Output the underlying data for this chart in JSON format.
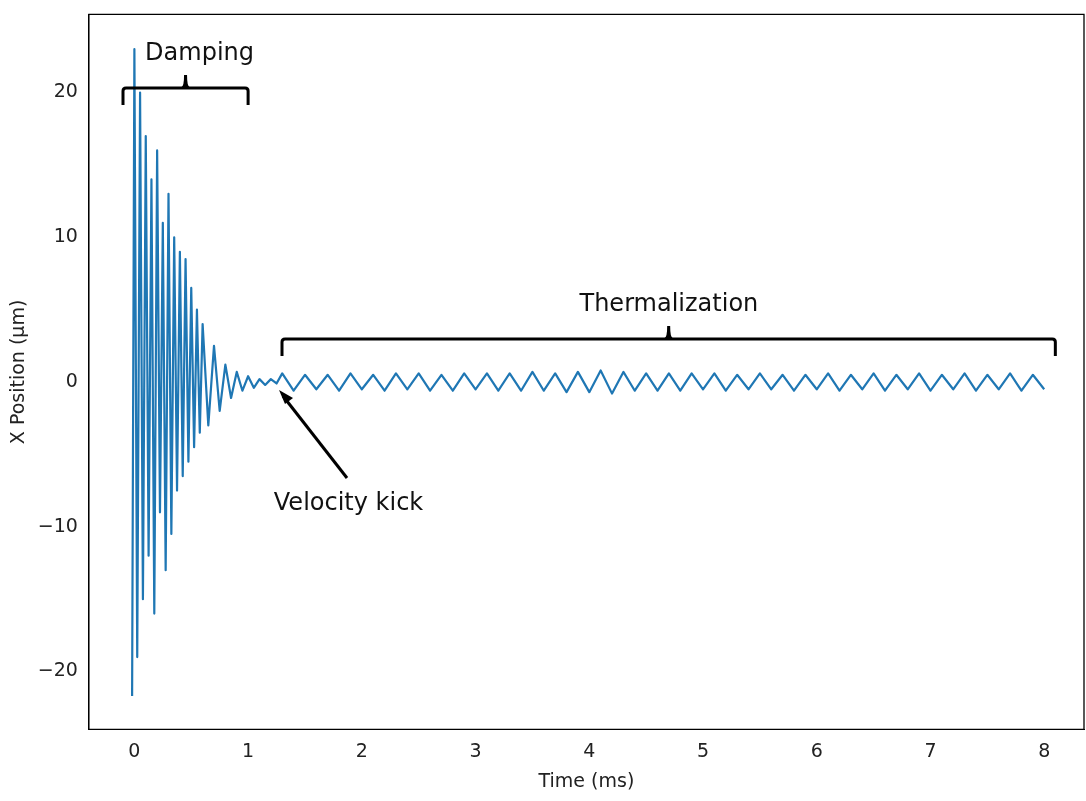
{
  "chart_data": {
    "type": "line",
    "xlabel": "Time (ms)",
    "ylabel": "X Position (μm)",
    "xlim": [
      -0.4,
      8.35
    ],
    "ylim": [
      -24,
      25.4
    ],
    "xticks": [
      0,
      1,
      2,
      3,
      4,
      5,
      6,
      7,
      8
    ],
    "yticks": [
      -20,
      -10,
      0,
      10,
      20
    ],
    "grid": false,
    "legend": false,
    "marker": "none",
    "line_style": "solid",
    "annotations": [
      "Damping",
      "Thermalization",
      "Velocity kick"
    ],
    "series": [
      {
        "color": "#1f77b4",
        "x": [
          -0.02,
          0,
          0.025,
          0.05,
          0.075,
          0.1,
          0.125,
          0.15,
          0.175,
          0.2,
          0.225,
          0.25,
          0.275,
          0.3,
          0.325,
          0.35,
          0.375,
          0.4,
          0.425,
          0.45,
          0.475,
          0.5,
          0.525,
          0.55,
          0.575,
          0.6,
          0.65,
          0.7,
          0.75,
          0.8,
          0.85,
          0.9,
          0.95,
          1.0,
          1.05,
          1.1,
          1.15,
          1.2,
          1.25,
          1.3,
          1.4,
          1.5,
          1.6,
          1.7,
          1.8,
          1.9,
          2.0,
          2.1,
          2.2,
          2.3,
          2.4,
          2.5,
          2.6,
          2.7,
          2.8,
          2.9,
          3.0,
          3.1,
          3.2,
          3.3,
          3.4,
          3.5,
          3.6,
          3.7,
          3.8,
          3.9,
          4.0,
          4.1,
          4.2,
          4.3,
          4.4,
          4.5,
          4.6,
          4.7,
          4.8,
          4.9,
          5.0,
          5.1,
          5.2,
          5.3,
          5.4,
          5.5,
          5.6,
          5.7,
          5.8,
          5.9,
          6.0,
          6.1,
          6.2,
          6.3,
          6.4,
          6.5,
          6.6,
          6.7,
          6.8,
          6.9,
          7.0,
          7.1,
          7.2,
          7.3,
          7.4,
          7.5,
          7.6,
          7.7,
          7.8,
          7.9,
          8.0
        ],
        "values": [
          -21.7,
          23,
          -19,
          20,
          -15,
          17,
          -12,
          14,
          -16,
          16,
          -9,
          11,
          -13,
          13,
          -10.5,
          10,
          -7.5,
          9,
          -6.5,
          8.5,
          -5.5,
          6.5,
          -4.5,
          5,
          -3.5,
          4,
          -3,
          2.5,
          -2,
          1.2,
          -1.1,
          0.7,
          -0.6,
          0.4,
          -0.4,
          0.2,
          -0.2,
          0.2,
          -0.1,
          0.6,
          -0.6,
          0.5,
          -0.5,
          0.5,
          -0.6,
          0.6,
          -0.5,
          0.5,
          -0.6,
          0.6,
          -0.5,
          0.6,
          -0.6,
          0.5,
          -0.6,
          0.6,
          -0.5,
          0.6,
          -0.6,
          0.6,
          -0.6,
          0.7,
          -0.6,
          0.6,
          -0.7,
          0.7,
          -0.7,
          0.8,
          -0.8,
          0.7,
          -0.6,
          0.6,
          -0.6,
          0.6,
          -0.6,
          0.6,
          -0.5,
          0.6,
          -0.6,
          0.5,
          -0.5,
          0.6,
          -0.5,
          0.5,
          -0.6,
          0.5,
          -0.5,
          0.6,
          -0.6,
          0.5,
          -0.5,
          0.6,
          -0.6,
          0.5,
          -0.5,
          0.6,
          -0.6,
          0.5,
          -0.5,
          0.6,
          -0.6,
          0.5,
          -0.5,
          0.6,
          -0.6,
          0.5,
          -0.5
        ]
      }
    ]
  }
}
